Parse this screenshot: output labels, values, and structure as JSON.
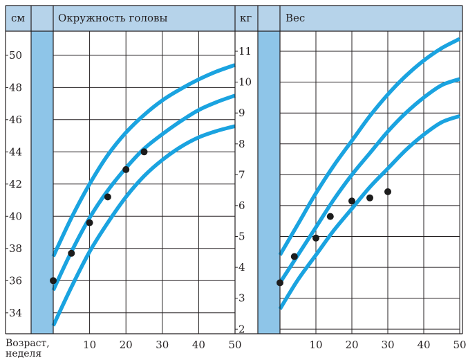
{
  "colors": {
    "header_bg": "#b6d3ea",
    "strip": "#8ec5e8",
    "grid": "#231f20",
    "curve": "#1aa3e0",
    "point": "#1c1c1c"
  },
  "x_axis": {
    "label_line1": "Возраст,",
    "label_line2": "неделя"
  },
  "chart_data": [
    {
      "type": "line",
      "title": "Окружность головы",
      "unit": "см",
      "xlabel": "Возраст, неделя",
      "xlim": [
        0,
        50
      ],
      "ylim": [
        32.7,
        51.5
      ],
      "x_ticks": [
        10,
        20,
        30,
        40,
        50
      ],
      "y_ticks": [
        34,
        36,
        38,
        40,
        42,
        44,
        46,
        48,
        50
      ],
      "grid": true,
      "series": [
        {
          "x": [
            0,
            5,
            10,
            15,
            20,
            25,
            30,
            35,
            40,
            45,
            50
          ],
          "y": [
            37.5,
            39.9,
            42.0,
            43.8,
            45.2,
            46.3,
            47.2,
            47.9,
            48.5,
            49.0,
            49.4
          ],
          "style": "curve"
        },
        {
          "x": [
            0,
            5,
            10,
            15,
            20,
            25,
            30,
            35,
            40,
            45,
            50
          ],
          "y": [
            35.4,
            37.8,
            39.9,
            41.6,
            43.0,
            44.2,
            45.1,
            45.9,
            46.6,
            47.1,
            47.5
          ],
          "style": "curve"
        },
        {
          "x": [
            0,
            5,
            10,
            15,
            20,
            25,
            30,
            35,
            40,
            45,
            50
          ],
          "y": [
            33.2,
            35.6,
            37.8,
            39.6,
            41.2,
            42.5,
            43.5,
            44.3,
            44.9,
            45.3,
            45.6
          ],
          "style": "curve"
        },
        {
          "x": [
            0,
            5,
            10,
            15,
            20,
            25
          ],
          "y": [
            36.0,
            37.7,
            39.6,
            41.2,
            42.9,
            44.0
          ],
          "style": "points"
        }
      ]
    },
    {
      "type": "line",
      "title": "Вес",
      "unit": "кг",
      "xlabel": "Возраст, неделя",
      "xlim": [
        0,
        50
      ],
      "ylim": [
        1.85,
        11.65
      ],
      "x_ticks": [
        10,
        20,
        30,
        40,
        50
      ],
      "y_ticks": [
        2,
        3,
        4,
        5,
        6,
        7,
        8,
        9,
        10,
        11
      ],
      "grid": true,
      "series": [
        {
          "x": [
            0,
            5,
            10,
            15,
            20,
            25,
            30,
            35,
            40,
            45,
            50
          ],
          "y": [
            4.4,
            5.4,
            6.4,
            7.3,
            8.1,
            8.9,
            9.6,
            10.2,
            10.7,
            11.1,
            11.4
          ],
          "style": "curve"
        },
        {
          "x": [
            0,
            5,
            10,
            15,
            20,
            25,
            30,
            35,
            40,
            45,
            50
          ],
          "y": [
            3.5,
            4.4,
            5.3,
            6.2,
            7.0,
            7.7,
            8.4,
            9.0,
            9.5,
            9.9,
            10.1
          ],
          "style": "curve"
        },
        {
          "x": [
            0,
            5,
            10,
            15,
            20,
            25,
            30,
            35,
            40,
            45,
            50
          ],
          "y": [
            2.65,
            3.6,
            4.4,
            5.2,
            5.9,
            6.6,
            7.2,
            7.8,
            8.3,
            8.7,
            8.9
          ],
          "style": "curve"
        },
        {
          "x": [
            0,
            4,
            10,
            14,
            20,
            25,
            30
          ],
          "y": [
            3.5,
            4.35,
            4.95,
            5.65,
            6.15,
            6.25,
            6.45
          ],
          "style": "points"
        }
      ]
    }
  ]
}
